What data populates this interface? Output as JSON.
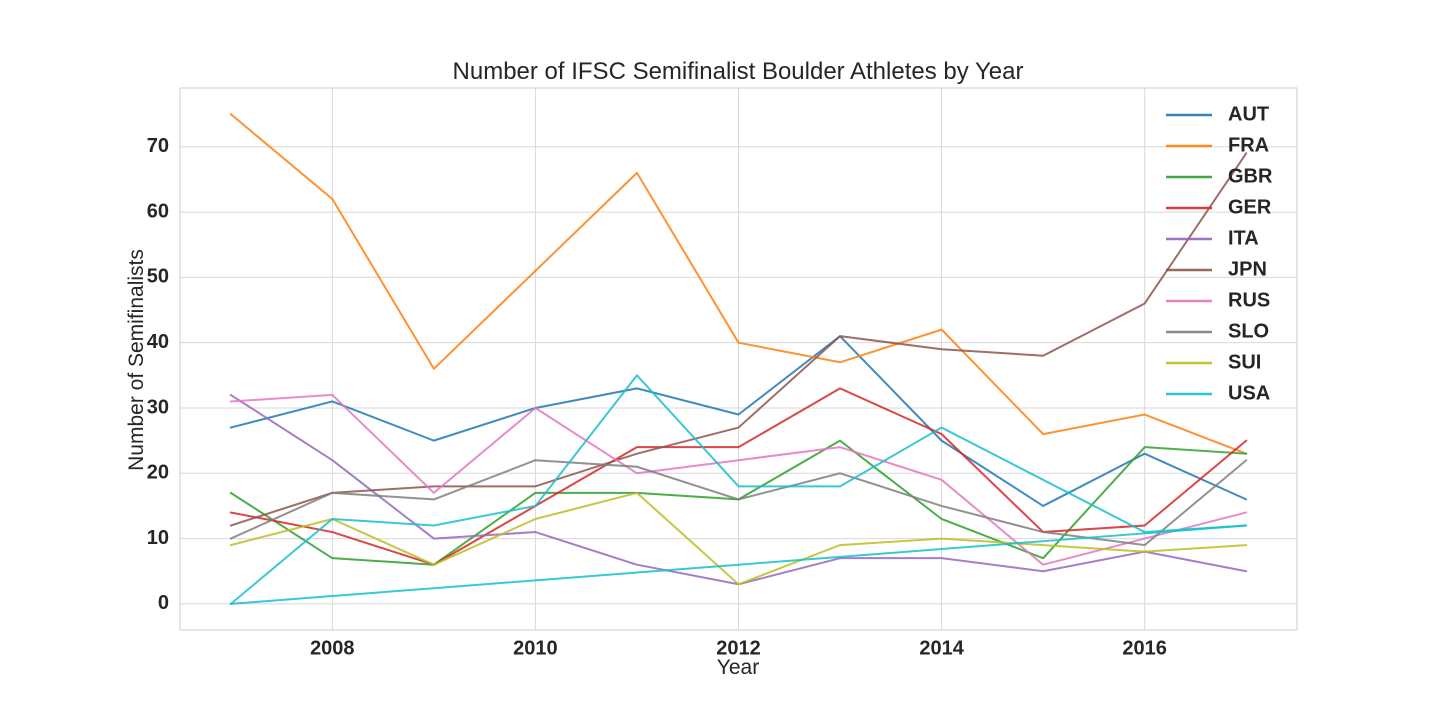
{
  "chart_data": {
    "type": "line",
    "title": "Number of IFSC Semifinalist Boulder Athletes by Year",
    "xlabel": "Year",
    "ylabel": "Number of Semifinalists",
    "x": [
      2007,
      2008,
      2009,
      2010,
      2011,
      2012,
      2013,
      2014,
      2015,
      2016,
      2017
    ],
    "xlim": [
      2006.5,
      2017.5
    ],
    "ylim": [
      -4,
      79
    ],
    "xticks": [
      2008,
      2010,
      2012,
      2014,
      2016
    ],
    "yticks": [
      0,
      10,
      20,
      30,
      40,
      50,
      60,
      70
    ],
    "grid": true,
    "legend_position": "top-right",
    "series": [
      {
        "name": "AUT",
        "color": "#1f77b4",
        "values": [
          27,
          31,
          25,
          30,
          33,
          29,
          41,
          25,
          15,
          23,
          16
        ]
      },
      {
        "name": "FRA",
        "color": "#ff7f0e",
        "values": [
          75,
          62,
          36,
          51,
          66,
          40,
          37,
          42,
          26,
          29,
          23
        ]
      },
      {
        "name": "GBR",
        "color": "#2ca02c",
        "values": [
          17,
          7,
          6,
          17,
          17,
          16,
          25,
          13,
          7,
          24,
          23
        ]
      },
      {
        "name": "GER",
        "color": "#d62728",
        "values": [
          14,
          11,
          6,
          15,
          24,
          24,
          33,
          26,
          11,
          12,
          25
        ]
      },
      {
        "name": "ITA",
        "color": "#9467bd",
        "values": [
          32,
          22,
          10,
          11,
          6,
          3,
          7,
          7,
          5,
          8,
          5
        ]
      },
      {
        "name": "JPN",
        "color": "#8c564b",
        "values": [
          12,
          17,
          18,
          18,
          23,
          27,
          41,
          39,
          38,
          46,
          69
        ]
      },
      {
        "name": "RUS",
        "color": "#e377c2",
        "values": [
          31,
          32,
          17,
          30,
          20,
          22,
          24,
          19,
          6,
          10,
          14
        ]
      },
      {
        "name": "SLO",
        "color": "#7f7f7f",
        "values": [
          10,
          17,
          16,
          22,
          21,
          16,
          20,
          15,
          11,
          9,
          22
        ]
      },
      {
        "name": "SUI",
        "color": "#bcbd22",
        "values": [
          9,
          13,
          6,
          13,
          17,
          3,
          9,
          10,
          9,
          8,
          9
        ]
      },
      {
        "name": "USA",
        "color": "#17becf",
        "values": [
          0,
          13,
          12,
          15,
          35,
          18,
          18,
          27,
          19,
          11,
          12
        ]
      }
    ],
    "extra_series": [
      {
        "name": "",
        "color": "#17becf",
        "values": [
          0,
          1.2,
          2.4,
          3.6,
          4.8,
          6,
          7.2,
          8.4,
          9.6,
          10.8,
          12
        ]
      }
    ]
  }
}
